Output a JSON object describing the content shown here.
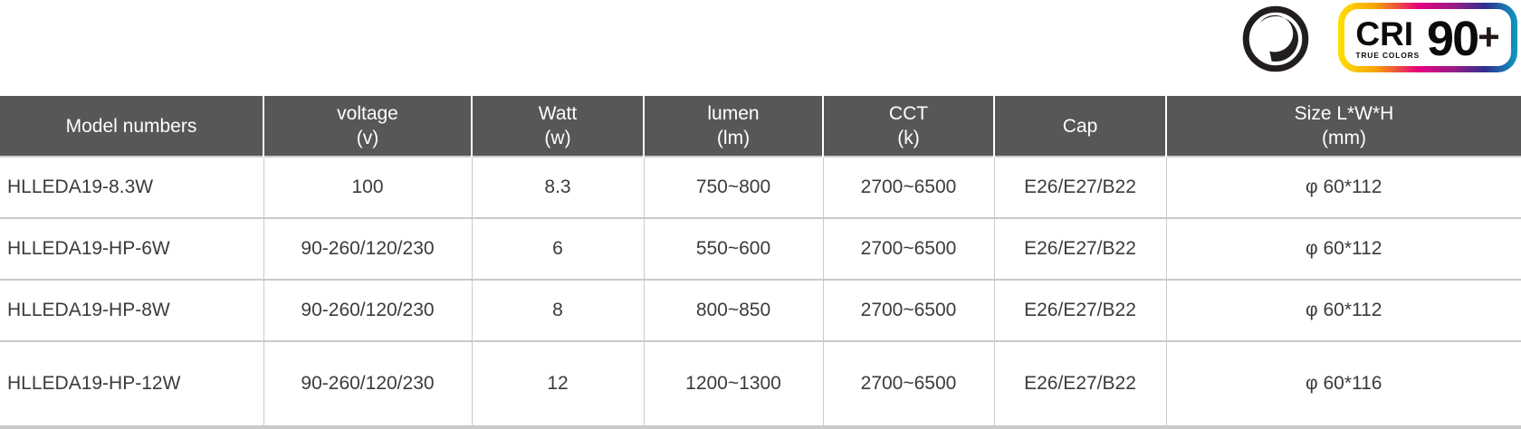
{
  "badges": {
    "dimmable_icon": "dimmable-knob-icon",
    "cri": {
      "label": "CRI",
      "sublabel": "TRUE COLORS",
      "value": "90",
      "suffix": "+"
    }
  },
  "table": {
    "columns": [
      {
        "key": "model",
        "line1": "Model numbers",
        "line2": ""
      },
      {
        "key": "voltage",
        "line1": "voltage",
        "line2": "(v)"
      },
      {
        "key": "watt",
        "line1": "Watt",
        "line2": "(w)"
      },
      {
        "key": "lumen",
        "line1": "lumen",
        "line2": "(lm)"
      },
      {
        "key": "cct",
        "line1": "CCT",
        "line2": "(k)"
      },
      {
        "key": "cap",
        "line1": "Cap",
        "line2": ""
      },
      {
        "key": "size",
        "line1": "Size L*W*H",
        "line2": "(mm)"
      }
    ],
    "rows": [
      [
        "HLLEDA19-8.3W",
        "100",
        "8.3",
        "750~800",
        "2700~6500",
        "E26/E27/B22",
        "φ 60*112"
      ],
      [
        "HLLEDA19-HP-6W",
        "90-260/120/230",
        "6",
        "550~600",
        "2700~6500",
        "E26/E27/B22",
        "φ 60*112"
      ],
      [
        "HLLEDA19-HP-8W",
        "90-260/120/230",
        "8",
        "800~850",
        "2700~6500",
        "E26/E27/B22",
        "φ 60*112"
      ],
      [
        "HLLEDA19-HP-12W",
        "90-260/120/230",
        "12",
        "1200~1300",
        "2700~6500",
        "E26/E27/B22",
        "φ 60*116"
      ]
    ]
  },
  "colors": {
    "header_bg": "#595656",
    "header_text": "#ffffff",
    "body_text": "#3e3a39",
    "grid_line": "#c9caca",
    "icon_ink": "#221e1f",
    "cri_gradient": [
      "#ffe000",
      "#f7a600",
      "#e6007e",
      "#911d87",
      "#2f2f8f",
      "#0f9bc0"
    ]
  }
}
